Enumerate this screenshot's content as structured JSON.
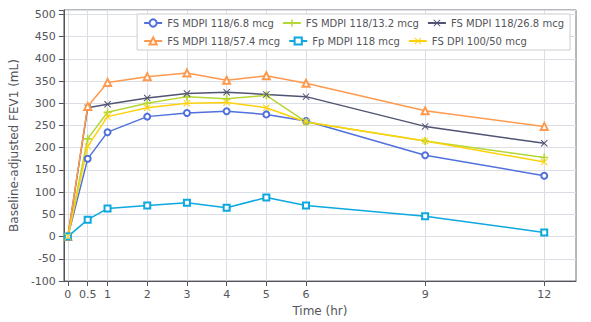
{
  "chart_data": {
    "type": "line",
    "xlabel": "Time (hr)",
    "ylabel": "Baseline-adjusted FEV1 (mL)",
    "x": [
      0,
      0.5,
      1,
      2,
      3,
      4,
      5,
      6,
      9,
      12
    ],
    "series": [
      {
        "name": "FS MDPI 118/6.8 mcg",
        "marker": "circle",
        "values": [
          0,
          175,
          235,
          270,
          278,
          282,
          275,
          260,
          183,
          137
        ]
      },
      {
        "name": "FS MDPI 118/13.2 mcg",
        "marker": "plus",
        "values": [
          0,
          220,
          280,
          300,
          315,
          310,
          318,
          258,
          215,
          178
        ]
      },
      {
        "name": "FS MDPI 118/26.8 mcg",
        "marker": "x",
        "values": [
          0,
          290,
          298,
          312,
          322,
          325,
          320,
          315,
          248,
          210
        ]
      },
      {
        "name": "FS MDPI 118/57.4 mcg",
        "marker": "triangle",
        "values": [
          0,
          293,
          347,
          360,
          368,
          352,
          362,
          345,
          283,
          248
        ]
      },
      {
        "name": "Fp MDPI 118 mcg",
        "marker": "square",
        "values": [
          0,
          38,
          63,
          70,
          76,
          65,
          88,
          70,
          46,
          9
        ]
      },
      {
        "name": "FS DPI 100/50 mcg",
        "marker": "x",
        "values": [
          0,
          203,
          270,
          290,
          300,
          302,
          290,
          258,
          215,
          168
        ]
      }
    ],
    "xlim": [
      -0.1,
      12.8
    ],
    "ylim": [
      -100,
      510
    ],
    "xticks": [
      0,
      0.5,
      1,
      2,
      3,
      4,
      5,
      6,
      9,
      12
    ],
    "yticks": [
      -100,
      -50,
      0,
      50,
      100,
      150,
      200,
      250,
      300,
      350,
      400,
      450,
      500
    ],
    "grid": true,
    "legend": "upper right"
  }
}
